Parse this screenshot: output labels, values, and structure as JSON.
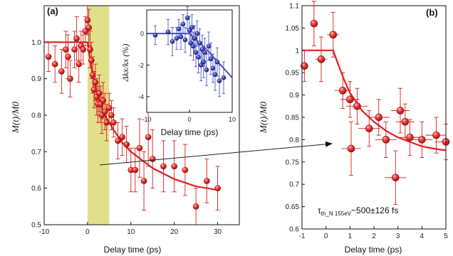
{
  "chart_data": [
    {
      "panel_id": "a",
      "panel_label": "(a)",
      "type": "scatter",
      "xlabel": "Delay time (ps)",
      "ylabel": "M(t)/M0",
      "xlim": [
        -10,
        35
      ],
      "ylim": [
        0.5,
        1.1
      ],
      "xticks": [
        -10,
        0,
        10,
        20,
        30
      ],
      "yticks": [
        0.5,
        0.6,
        0.7,
        0.8,
        0.9,
        1.0
      ],
      "ytick_labels": [
        "0.5",
        "0.6",
        "0.7",
        "0.8",
        "0.9",
        "1.0"
      ],
      "highlight_band": {
        "x0": 0,
        "x1": 5,
        "color": "#e2df8a"
      },
      "marker_color": "#e03030",
      "points": [
        {
          "x": -9,
          "y": 0.96,
          "err": 0.04
        },
        {
          "x": -7.5,
          "y": 0.94,
          "err": 0.05
        },
        {
          "x": -6,
          "y": 0.92,
          "err": 0.06
        },
        {
          "x": -5,
          "y": 0.98,
          "err": 0.05
        },
        {
          "x": -4.5,
          "y": 0.96,
          "err": 0.06
        },
        {
          "x": -4,
          "y": 0.9,
          "err": 0.05
        },
        {
          "x": -3,
          "y": 0.98,
          "err": 0.05
        },
        {
          "x": -2.5,
          "y": 1.01,
          "err": 0.06
        },
        {
          "x": -2,
          "y": 0.94,
          "err": 0.05
        },
        {
          "x": -1.5,
          "y": 0.99,
          "err": 0.04
        },
        {
          "x": -1,
          "y": 0.98,
          "err": 0.04
        },
        {
          "x": -0.5,
          "y": 1.03,
          "err": 0.04
        },
        {
          "x": 0,
          "y": 1.06,
          "err": 0.04
        },
        {
          "x": 0.3,
          "y": 1.04,
          "err": 0.05
        },
        {
          "x": 0.6,
          "y": 0.98,
          "err": 0.05
        },
        {
          "x": 0.9,
          "y": 0.95,
          "err": 0.05
        },
        {
          "x": 1.2,
          "y": 0.91,
          "err": 0.05
        },
        {
          "x": 1.5,
          "y": 0.87,
          "err": 0.05
        },
        {
          "x": 1.8,
          "y": 0.89,
          "err": 0.05
        },
        {
          "x": 2.1,
          "y": 0.85,
          "err": 0.05
        },
        {
          "x": 2.4,
          "y": 0.83,
          "err": 0.05
        },
        {
          "x": 2.7,
          "y": 0.86,
          "err": 0.05
        },
        {
          "x": 3,
          "y": 0.83,
          "err": 0.05
        },
        {
          "x": 3.3,
          "y": 0.8,
          "err": 0.05
        },
        {
          "x": 3.6,
          "y": 0.84,
          "err": 0.05
        },
        {
          "x": 4,
          "y": 0.81,
          "err": 0.05
        },
        {
          "x": 4.4,
          "y": 0.78,
          "err": 0.05
        },
        {
          "x": 5,
          "y": 0.82,
          "err": 0.04
        },
        {
          "x": 5.5,
          "y": 0.8,
          "err": 0.04
        },
        {
          "x": 6,
          "y": 0.78,
          "err": 0.04
        },
        {
          "x": 7,
          "y": 0.73,
          "err": 0.05
        },
        {
          "x": 8,
          "y": 0.74,
          "err": 0.05
        },
        {
          "x": 9,
          "y": 0.72,
          "err": 0.05
        },
        {
          "x": 10,
          "y": 0.65,
          "err": 0.06
        },
        {
          "x": 11,
          "y": 0.65,
          "err": 0.06
        },
        {
          "x": 12,
          "y": 0.71,
          "err": 0.08
        },
        {
          "x": 13,
          "y": 0.62,
          "err": 0.08
        },
        {
          "x": 14,
          "y": 0.74,
          "err": 0.08
        },
        {
          "x": 15,
          "y": 0.68,
          "err": 0.08
        },
        {
          "x": 17.5,
          "y": 0.66,
          "err": 0.07
        },
        {
          "x": 20,
          "y": 0.66,
          "err": 0.07
        },
        {
          "x": 22.5,
          "y": 0.65,
          "err": 0.07
        },
        {
          "x": 25,
          "y": 0.55,
          "err": 0.05
        },
        {
          "x": 27.5,
          "y": 0.62,
          "err": 0.06
        },
        {
          "x": 30,
          "y": 0.6,
          "err": 0.06
        }
      ],
      "fit": {
        "color": "#e02020",
        "points": [
          [
            -10,
            1.0
          ],
          [
            -0.3,
            1.0
          ],
          [
            0,
            1.0
          ],
          [
            0.5,
            0.96
          ],
          [
            1,
            0.925
          ],
          [
            2,
            0.87
          ],
          [
            3,
            0.83
          ],
          [
            4,
            0.8
          ],
          [
            6,
            0.76
          ],
          [
            8,
            0.725
          ],
          [
            10,
            0.7
          ],
          [
            15,
            0.655
          ],
          [
            20,
            0.625
          ],
          [
            25,
            0.605
          ],
          [
            30,
            0.595
          ]
        ]
      },
      "inset": {
        "type": "scatter",
        "xlabel": "Delay time (ps)",
        "ylabel": "Δkx/kx (%)",
        "xlim": [
          -10,
          10
        ],
        "ylim": [
          -5,
          1.5
        ],
        "xticks": [
          -10,
          0,
          10
        ],
        "yticks": [
          -4,
          -2,
          0
        ],
        "marker_color": "#3a45b8",
        "points": [
          {
            "x": -8,
            "y": -0.1,
            "err": 0.6
          },
          {
            "x": -5,
            "y": 0.1,
            "err": 0.8
          },
          {
            "x": -4,
            "y": -0.5,
            "err": 0.9
          },
          {
            "x": -3,
            "y": -0.3,
            "err": 0.7
          },
          {
            "x": -2.5,
            "y": 0.3,
            "err": 0.6
          },
          {
            "x": -2,
            "y": -0.2,
            "err": 0.8
          },
          {
            "x": -1.5,
            "y": 0.6,
            "err": 0.6
          },
          {
            "x": -1,
            "y": -0.4,
            "err": 0.8
          },
          {
            "x": -0.5,
            "y": 1.0,
            "err": 0.7
          },
          {
            "x": 0,
            "y": 0.2,
            "err": 0.9
          },
          {
            "x": 0.3,
            "y": -0.6,
            "err": 0.8
          },
          {
            "x": 0.6,
            "y": 0.4,
            "err": 0.8
          },
          {
            "x": 0.9,
            "y": -0.8,
            "err": 0.9
          },
          {
            "x": 1.2,
            "y": -0.3,
            "err": 0.8
          },
          {
            "x": 1.5,
            "y": -1.2,
            "err": 0.9
          },
          {
            "x": 1.8,
            "y": 0.0,
            "err": 0.8
          },
          {
            "x": 2.1,
            "y": -1.5,
            "err": 1.0
          },
          {
            "x": 2.4,
            "y": -0.6,
            "err": 0.9
          },
          {
            "x": 2.7,
            "y": -2.0,
            "err": 1.0
          },
          {
            "x": 3,
            "y": -1.0,
            "err": 0.9
          },
          {
            "x": 3.3,
            "y": -1.8,
            "err": 1.0
          },
          {
            "x": 3.6,
            "y": -1.2,
            "err": 0.9
          },
          {
            "x": 4,
            "y": -2.3,
            "err": 1.0
          },
          {
            "x": 4.5,
            "y": -0.8,
            "err": 0.9
          },
          {
            "x": 5,
            "y": -1.6,
            "err": 1.0
          },
          {
            "x": 5.5,
            "y": -2.2,
            "err": 0.9
          },
          {
            "x": 6,
            "y": -2.6,
            "err": 1.0
          },
          {
            "x": 6.5,
            "y": -1.8,
            "err": 0.9
          },
          {
            "x": 7,
            "y": -3.0,
            "err": 1.0
          },
          {
            "x": 8,
            "y": -2.8,
            "err": 1.0
          }
        ],
        "fit": {
          "color": "#3a45b8",
          "points": [
            [
              -10,
              0.0
            ],
            [
              0,
              0.0
            ],
            [
              2,
              -0.5
            ],
            [
              4,
              -1.0
            ],
            [
              6,
              -1.6
            ],
            [
              8,
              -2.2
            ],
            [
              10,
              -2.8
            ]
          ]
        }
      }
    },
    {
      "panel_id": "b",
      "panel_label": "(b)",
      "type": "scatter",
      "xlabel": "Delay time (ps)",
      "ylabel": "M(t)/M0",
      "xlim": [
        -1,
        5
      ],
      "ylim": [
        0.6,
        1.1
      ],
      "xticks": [
        -1,
        0,
        1,
        2,
        3,
        4,
        5
      ],
      "yticks": [
        0.6,
        0.65,
        0.7,
        0.75,
        0.8,
        0.85,
        0.9,
        0.95,
        1.0,
        1.05,
        1.1
      ],
      "ytick_labels": [
        "0.6",
        "0.65",
        "0.7",
        "0.75",
        "0.8",
        "0.85",
        "0.9",
        "0.95",
        "1",
        "1.05",
        "1.1"
      ],
      "marker_color": "#e03030",
      "points": [
        {
          "x": -0.9,
          "y": 0.965,
          "xerr": 0.1,
          "yerr": 0.035
        },
        {
          "x": -0.5,
          "y": 1.06,
          "xerr": 0.15,
          "yerr": 0.05
        },
        {
          "x": -0.2,
          "y": 0.98,
          "xerr": 0.25,
          "yerr": 0.05
        },
        {
          "x": 0.3,
          "y": 1.035,
          "xerr": 0.25,
          "yerr": 0.05
        },
        {
          "x": 0.7,
          "y": 0.91,
          "xerr": 0.35,
          "yerr": 0.04
        },
        {
          "x": 1.0,
          "y": 0.89,
          "xerr": 0.4,
          "yerr": 0.04
        },
        {
          "x": 1.05,
          "y": 0.78,
          "xerr": 0.4,
          "yerr": 0.06
        },
        {
          "x": 1.3,
          "y": 0.875,
          "xerr": 0.45,
          "yerr": 0.04
        },
        {
          "x": 1.8,
          "y": 0.825,
          "xerr": 0.45,
          "yerr": 0.04
        },
        {
          "x": 2.2,
          "y": 0.85,
          "xerr": 0.45,
          "yerr": 0.04
        },
        {
          "x": 2.5,
          "y": 0.8,
          "xerr": 0.45,
          "yerr": 0.04
        },
        {
          "x": 2.9,
          "y": 0.715,
          "xerr": 0.45,
          "yerr": 0.06
        },
        {
          "x": 3.1,
          "y": 0.865,
          "xerr": 0.4,
          "yerr": 0.05
        },
        {
          "x": 3.3,
          "y": 0.84,
          "xerr": 0.4,
          "yerr": 0.04
        },
        {
          "x": 3.5,
          "y": 0.805,
          "xerr": 0.4,
          "yerr": 0.04
        },
        {
          "x": 4.0,
          "y": 0.8,
          "xerr": 0.45,
          "yerr": 0.04
        },
        {
          "x": 4.6,
          "y": 0.81,
          "xerr": 0.45,
          "yerr": 0.04
        },
        {
          "x": 5.0,
          "y": 0.795,
          "xerr": 0.45,
          "yerr": 0.04
        }
      ],
      "fit": {
        "color": "#e02020",
        "points": [
          [
            -1,
            1.0
          ],
          [
            0.3,
            1.0
          ],
          [
            0.5,
            0.97
          ],
          [
            0.75,
            0.935
          ],
          [
            1.0,
            0.905
          ],
          [
            1.5,
            0.865
          ],
          [
            2,
            0.84
          ],
          [
            2.5,
            0.82
          ],
          [
            3,
            0.805
          ],
          [
            3.5,
            0.795
          ],
          [
            4,
            0.785
          ],
          [
            4.5,
            0.78
          ],
          [
            5,
            0.776
          ]
        ]
      },
      "annotation": {
        "prefix": "τ",
        "subscript": "th_N 155eV",
        "text": "~500±126 fs"
      }
    }
  ]
}
